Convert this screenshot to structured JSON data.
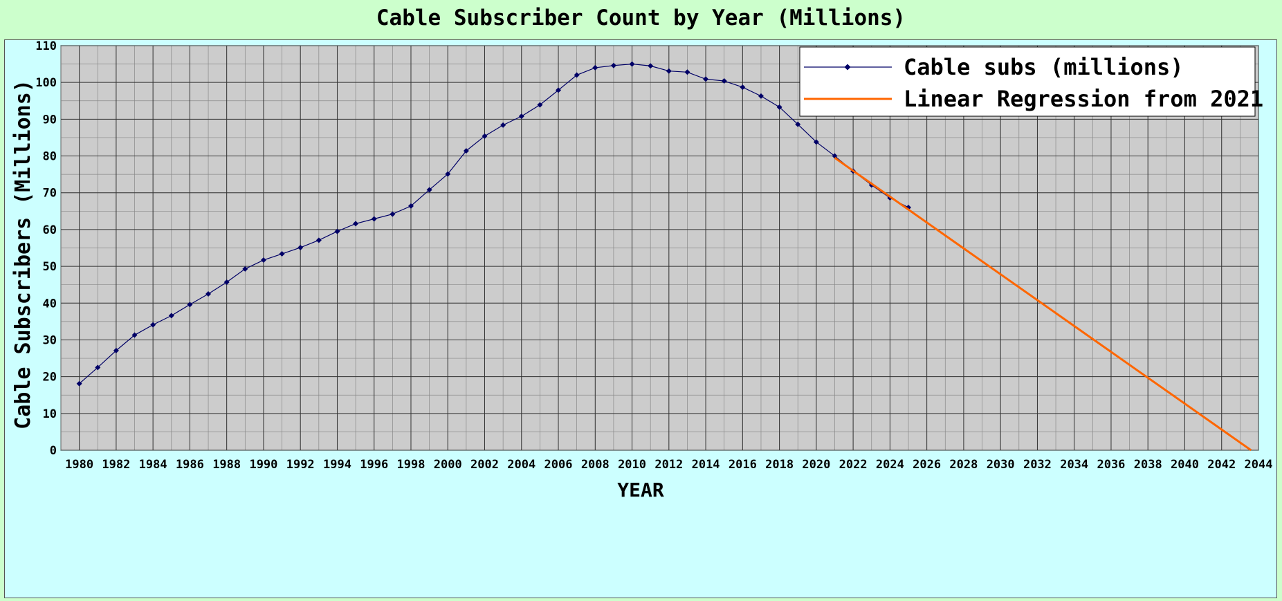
{
  "chart_data": {
    "type": "line",
    "title": "Cable Subscriber Count by Year (Millions)",
    "xlabel": "YEAR",
    "ylabel": "Cable Subscribers (Millions)",
    "xlim": [
      1979,
      2044
    ],
    "ylim": [
      0,
      110
    ],
    "grid": true,
    "legend_position": "top-right",
    "x_tick_labels": [
      "1980",
      "1982",
      "1984",
      "1986",
      "1988",
      "1990",
      "1992",
      "1994",
      "1996",
      "1998",
      "2000",
      "2002",
      "2004",
      "2006",
      "2008",
      "2010",
      "2012",
      "2014",
      "2016",
      "2018",
      "2020",
      "2022",
      "2024",
      "2026",
      "2028",
      "2030",
      "2032",
      "2034",
      "2036",
      "2038",
      "2040",
      "2042",
      "2044"
    ],
    "y_tick_labels": [
      "0",
      "10",
      "20",
      "30",
      "40",
      "50",
      "60",
      "70",
      "80",
      "90",
      "100",
      "110"
    ],
    "series": [
      {
        "name": "Cable subs (millions)",
        "color": "#000066",
        "marker": "diamond",
        "x": [
          1980,
          1981,
          1982,
          1983,
          1984,
          1985,
          1986,
          1987,
          1988,
          1989,
          1990,
          1991,
          1992,
          1993,
          1994,
          1995,
          1996,
          1997,
          1998,
          1999,
          2000,
          2001,
          2002,
          2003,
          2004,
          2005,
          2006,
          2007,
          2008,
          2009,
          2010,
          2011,
          2012,
          2013,
          2014,
          2015,
          2016,
          2017,
          2018,
          2019,
          2020,
          2021,
          2022,
          2023,
          2024,
          2025
        ],
        "y": [
          18.1,
          22.5,
          27.1,
          31.3,
          34.1,
          36.6,
          39.6,
          42.5,
          45.7,
          49.3,
          51.7,
          53.4,
          55.1,
          57.1,
          59.5,
          61.6,
          62.9,
          64.2,
          66.4,
          70.8,
          75.1,
          81.4,
          85.4,
          88.4,
          90.8,
          93.9,
          97.9,
          102.0,
          104.0,
          104.6,
          105.0,
          104.5,
          103.1,
          102.8,
          100.9,
          100.4,
          98.7,
          96.3,
          93.3,
          88.6,
          83.8,
          80.0,
          75.9,
          72.1,
          68.6,
          66.0
        ]
      },
      {
        "name": "Linear Regression from 2021",
        "color": "#ff6600",
        "marker": "none",
        "x": [
          2021,
          2043.6
        ],
        "y": [
          79.5,
          0
        ]
      }
    ]
  }
}
